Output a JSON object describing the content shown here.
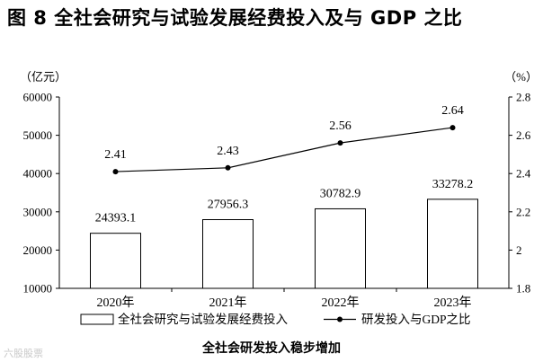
{
  "figure": {
    "title": "图 8    全社会研究与试验发展经费投入及与 GDP 之比",
    "caption": "全社会研发投入稳步增加",
    "watermark": "六股股票"
  },
  "chart_data": {
    "type": "bar+line",
    "categories": [
      "2020年",
      "2021年",
      "2022年",
      "2023年"
    ],
    "series": [
      {
        "name": "全社会研究与试验发展经费投入",
        "type": "bar",
        "axis": "left",
        "values": [
          24393.1,
          27956.3,
          30782.9,
          33278.2
        ],
        "labels": [
          "24393.1",
          "27956.3",
          "30782.9",
          "33278.2"
        ]
      },
      {
        "name": "研发投入与GDP之比",
        "type": "line",
        "axis": "right",
        "values": [
          2.41,
          2.43,
          2.56,
          2.64
        ],
        "labels": [
          "2.41",
          "2.43",
          "2.56",
          "2.64"
        ]
      }
    ],
    "left_axis": {
      "unit": "（亿元）",
      "min": 10000,
      "max": 60000,
      "ticks": [
        "10000",
        "20000",
        "30000",
        "40000",
        "50000",
        "60000"
      ]
    },
    "right_axis": {
      "unit": "（%）",
      "min": 1.8,
      "max": 2.8,
      "ticks": [
        "1.8",
        "2",
        "2.2",
        "2.4",
        "2.6",
        "2.8"
      ]
    },
    "grid": false,
    "legend_position": "bottom"
  }
}
